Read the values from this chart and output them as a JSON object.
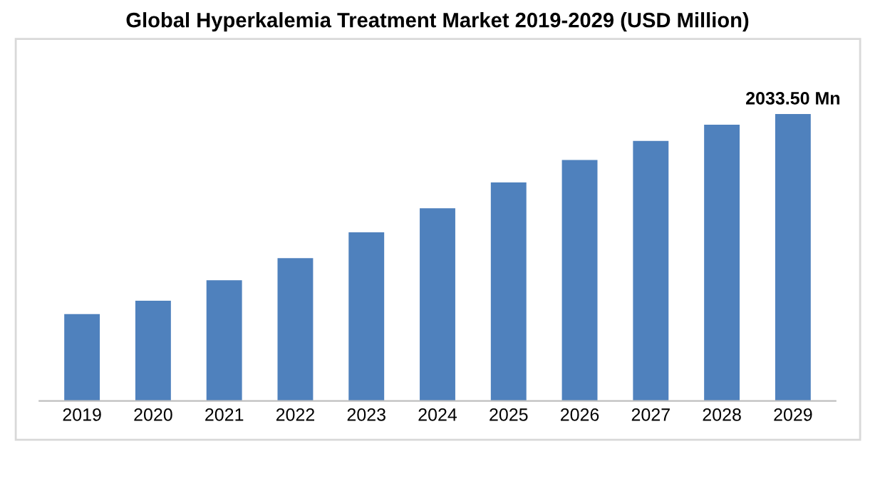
{
  "chart_data": {
    "type": "bar",
    "title": "Global Hyperkalemia Treatment Market 2019-2029 (USD Million)",
    "categories": [
      "2019",
      "2020",
      "2021",
      "2022",
      "2023",
      "2024",
      "2025",
      "2026",
      "2027",
      "2028",
      "2029"
    ],
    "values": [
      615,
      710,
      856,
      1012,
      1195,
      1365,
      1548,
      1708,
      1842,
      1958,
      2033.5
    ],
    "value_labels": [
      null,
      null,
      null,
      null,
      null,
      null,
      null,
      null,
      null,
      null,
      "2033.50 Mn"
    ],
    "color": "#4f81bd",
    "grid": false,
    "legend": false
  }
}
